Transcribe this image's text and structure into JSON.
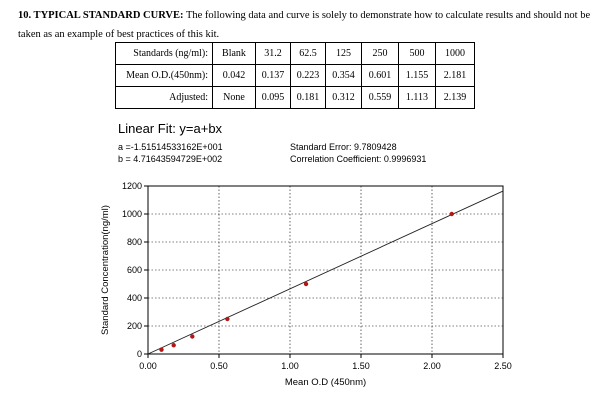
{
  "section": {
    "heading_bold": "10. TYPICAL STANDARD CURVE:",
    "heading_rest": " The following data and curve is solely to demonstrate how to calculate results and should not be taken as an example of best practices of this kit."
  },
  "table": {
    "rows": [
      {
        "label": "Standards (ng/ml):",
        "cells": [
          "Blank",
          "31.2",
          "62.5",
          "125",
          "250",
          "500",
          "1000"
        ]
      },
      {
        "label": "Mean O.D.(450nm):",
        "cells": [
          "0.042",
          "0.137",
          "0.223",
          "0.354",
          "0.601",
          "1.155",
          "2.181"
        ]
      },
      {
        "label": "Adjusted:",
        "cells": [
          "None",
          "0.095",
          "0.181",
          "0.312",
          "0.559",
          "1.113",
          "2.139"
        ]
      }
    ]
  },
  "fit": {
    "title": "Linear Fit: y=a+bx",
    "a": "a =-1.51514533162E+001",
    "b": "b = 4.71643594729E+002",
    "std_error": "Standard Error: 9.7809428",
    "correlation": "Correlation Coefficient: 0.9996931"
  },
  "chart_data": {
    "type": "scatter",
    "xlabel": "Mean O.D (450nm)",
    "ylabel": "Standard Concentration(ng/ml)",
    "xlim": [
      0,
      2.5
    ],
    "ylim": [
      0,
      1200
    ],
    "x_ticks": [
      "0.00",
      "0.50",
      "1.00",
      "1.50",
      "2.00",
      "2.50"
    ],
    "y_ticks": [
      "0",
      "200",
      "400",
      "600",
      "800",
      "1000",
      "1200"
    ],
    "grid": true,
    "points": [
      {
        "x": 0.095,
        "y": 31.2
      },
      {
        "x": 0.181,
        "y": 62.5
      },
      {
        "x": 0.312,
        "y": 125
      },
      {
        "x": 0.559,
        "y": 250
      },
      {
        "x": 1.113,
        "y": 500
      },
      {
        "x": 2.139,
        "y": 1000
      }
    ],
    "fit_line": {
      "intercept": -15.1514533162,
      "slope": 471.643594729
    },
    "point_color": "#b01818",
    "line_color": "#222222"
  }
}
